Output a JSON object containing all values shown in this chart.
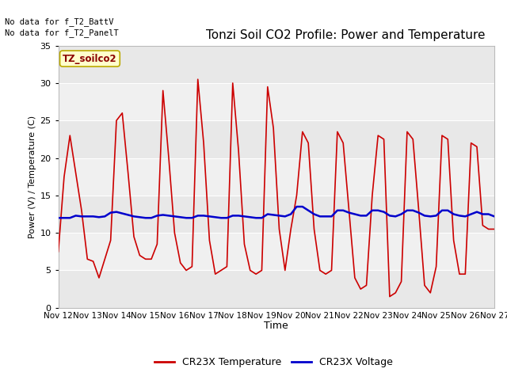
{
  "title": "Tonzi Soil CO2 Profile: Power and Temperature",
  "xlabel": "Time",
  "ylabel": "Power (V) / Temperature (C)",
  "ylim": [
    0,
    35
  ],
  "yticks": [
    0,
    5,
    10,
    15,
    20,
    25,
    30,
    35
  ],
  "x_labels": [
    "Nov 12",
    "Nov 13",
    "Nov 14",
    "Nov 15",
    "Nov 16",
    "Nov 17",
    "Nov 18",
    "Nov 19",
    "Nov 20",
    "Nov 21",
    "Nov 22",
    "Nov 23",
    "Nov 24",
    "Nov 25",
    "Nov 26",
    "Nov 27"
  ],
  "no_data_text": [
    "No data for f_T2_BattV",
    "No data for f_T2_PanelT"
  ],
  "legend_label_box": "TZ_soilco2",
  "legend_entries": [
    "CR23X Temperature",
    "CR23X Voltage"
  ],
  "legend_colors": [
    "#cc0000",
    "#0000cc"
  ],
  "temp_color": "#cc0000",
  "volt_color": "#0000cc",
  "bg_color": "#e8e8e8",
  "band_color": "#d0d0d0",
  "white_color": "#f0f0f0",
  "temp_data": [
    7.5,
    17.5,
    23.0,
    18.0,
    13.0,
    6.5,
    6.2,
    4.0,
    6.5,
    9.0,
    25.0,
    26.0,
    18.0,
    9.5,
    7.0,
    6.5,
    6.5,
    8.5,
    29.0,
    20.0,
    10.0,
    6.0,
    5.0,
    5.5,
    30.5,
    22.0,
    9.0,
    4.5,
    5.0,
    5.5,
    30.0,
    21.0,
    8.5,
    5.0,
    4.5,
    5.0,
    29.5,
    24.0,
    10.5,
    5.0,
    10.5,
    15.0,
    23.5,
    22.0,
    10.5,
    5.0,
    4.5,
    5.0,
    23.5,
    22.0,
    13.0,
    4.0,
    2.5,
    3.0,
    15.0,
    23.0,
    22.5,
    1.5,
    2.0,
    3.5,
    23.5,
    22.5,
    13.0,
    3.0,
    2.0,
    5.5,
    23.0,
    22.5,
    9.0,
    4.5,
    4.5,
    22.0,
    21.5,
    11.0,
    10.5,
    10.5
  ],
  "volt_data": [
    12.0,
    12.0,
    12.0,
    12.3,
    12.2,
    12.2,
    12.2,
    12.1,
    12.2,
    12.7,
    12.8,
    12.6,
    12.4,
    12.2,
    12.1,
    12.0,
    12.0,
    12.3,
    12.4,
    12.3,
    12.2,
    12.1,
    12.0,
    12.0,
    12.3,
    12.3,
    12.2,
    12.1,
    12.0,
    12.0,
    12.3,
    12.3,
    12.2,
    12.1,
    12.0,
    12.0,
    12.5,
    12.4,
    12.3,
    12.2,
    12.5,
    13.5,
    13.5,
    13.0,
    12.5,
    12.2,
    12.2,
    12.2,
    13.0,
    13.0,
    12.7,
    12.5,
    12.3,
    12.3,
    13.0,
    13.0,
    12.8,
    12.3,
    12.2,
    12.5,
    13.0,
    13.0,
    12.7,
    12.3,
    12.2,
    12.3,
    13.0,
    13.0,
    12.5,
    12.3,
    12.2,
    12.5,
    12.8,
    12.5,
    12.5,
    12.2
  ]
}
